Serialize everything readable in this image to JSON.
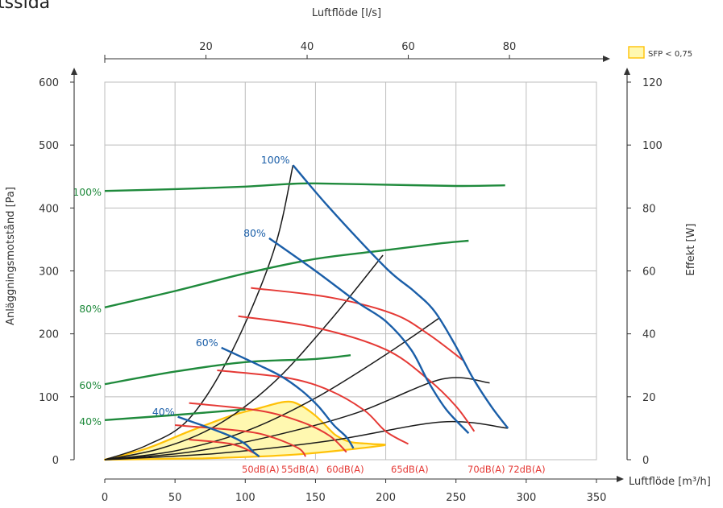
{
  "header": {
    "partial_title": "rtssida"
  },
  "chart_data": {
    "type": "line",
    "xlabel": "Luftflöde [m³/h]",
    "x2label": "Luftflöde [l/s]",
    "ylabel": "Anläggningsmotstånd [Pa]",
    "y2label": "Effekt [W]",
    "xlim": [
      0,
      350
    ],
    "ylim": [
      0,
      600
    ],
    "x2lim": [
      0,
      97.2
    ],
    "y2lim": [
      0,
      120
    ],
    "xticks": [
      0,
      50,
      100,
      150,
      200,
      250,
      300,
      350
    ],
    "yticks": [
      0,
      100,
      200,
      300,
      400,
      500,
      600
    ],
    "x2ticks": [
      20,
      40,
      60,
      80
    ],
    "y2ticks": [
      0,
      20,
      40,
      60,
      80,
      100,
      120
    ],
    "grid": true,
    "legend": {
      "label": "SFP < 0,75",
      "position": "top-right",
      "color": "#ffd54f"
    },
    "colors": {
      "pressure": "#1a5ea8",
      "power": "#1f8a3c",
      "noise": "#e53935",
      "system": "#1a1a1a",
      "sfp_fill": "#fff8b0",
      "sfp_edge": "#ffc107"
    },
    "sfp_region": [
      [
        0,
        0
      ],
      [
        30,
        18
      ],
      [
        60,
        45
      ],
      [
        90,
        70
      ],
      [
        110,
        82
      ],
      [
        128,
        92
      ],
      [
        138,
        88
      ],
      [
        150,
        70
      ],
      [
        160,
        48
      ],
      [
        165,
        38
      ],
      [
        175,
        28
      ],
      [
        190,
        25
      ],
      [
        196,
        22
      ],
      [
        135,
        8
      ],
      [
        70,
        2
      ]
    ],
    "system_curves": [
      [
        [
          0,
          0
        ],
        [
          30,
          23
        ],
        [
          60,
          65
        ],
        [
          90,
          170
        ],
        [
          120,
          330
        ],
        [
          134,
          468
        ]
      ],
      [
        [
          0,
          0
        ],
        [
          40,
          18
        ],
        [
          80,
          55
        ],
        [
          120,
          122
        ],
        [
          160,
          220
        ],
        [
          198,
          325
        ]
      ],
      [
        [
          0,
          0
        ],
        [
          50,
          14
        ],
        [
          100,
          45
        ],
        [
          150,
          98
        ],
        [
          200,
          167
        ],
        [
          238,
          225
        ]
      ],
      [
        [
          0,
          0
        ],
        [
          60,
          12
        ],
        [
          120,
          38
        ],
        [
          180,
          75
        ],
        [
          240,
          128
        ],
        [
          274,
          122
        ]
      ],
      [
        [
          0,
          0
        ],
        [
          80,
          10
        ],
        [
          160,
          30
        ],
        [
          240,
          60
        ],
        [
          287,
          50
        ]
      ]
    ],
    "pressure_series": [
      {
        "name": "100%",
        "points": [
          [
            134,
            468
          ],
          [
            160,
            400
          ],
          [
            200,
            305
          ],
          [
            220,
            268
          ],
          [
            235,
            235
          ],
          [
            250,
            180
          ],
          [
            262,
            130
          ],
          [
            275,
            85
          ],
          [
            287,
            50
          ]
        ]
      },
      {
        "name": "80%",
        "points": [
          [
            117,
            352
          ],
          [
            150,
            300
          ],
          [
            180,
            250
          ],
          [
            200,
            220
          ],
          [
            218,
            175
          ],
          [
            230,
            125
          ],
          [
            243,
            80
          ],
          [
            259,
            42
          ]
        ]
      },
      {
        "name": "60%",
        "points": [
          [
            83,
            178
          ],
          [
            110,
            150
          ],
          [
            126,
            132
          ],
          [
            140,
            110
          ],
          [
            152,
            85
          ],
          [
            163,
            55
          ],
          [
            172,
            36
          ],
          [
            177,
            18
          ]
        ]
      },
      {
        "name": "40%",
        "points": [
          [
            52,
            68
          ],
          [
            75,
            50
          ],
          [
            92,
            35
          ],
          [
            100,
            25
          ],
          [
            106,
            12
          ],
          [
            110,
            5
          ]
        ]
      }
    ],
    "power_series": [
      {
        "name": "100%",
        "points": [
          [
            0,
            85.4
          ],
          [
            50,
            86
          ],
          [
            100,
            86.8
          ],
          [
            130,
            87.6
          ],
          [
            150,
            87.8
          ],
          [
            200,
            87.4
          ],
          [
            250,
            87
          ],
          [
            285,
            87.2
          ]
        ]
      },
      {
        "name": "80%",
        "points": [
          [
            0,
            48.4
          ],
          [
            50,
            53.6
          ],
          [
            100,
            59.2
          ],
          [
            150,
            63.8
          ],
          [
            200,
            66.6
          ],
          [
            240,
            68.8
          ],
          [
            259,
            69.6
          ]
        ]
      },
      {
        "name": "60%",
        "points": [
          [
            0,
            24
          ],
          [
            50,
            28
          ],
          [
            100,
            31
          ],
          [
            150,
            32
          ],
          [
            175,
            33.2
          ]
        ]
      },
      {
        "name": "40%",
        "points": [
          [
            0,
            12.6
          ],
          [
            50,
            14.2
          ],
          [
            100,
            16
          ]
        ]
      }
    ],
    "noise_curves": [
      {
        "label": "50dB(A)",
        "points": [
          [
            0,
            0
          ],
          [
            60,
            32
          ],
          [
            90,
            25
          ],
          [
            105,
            12
          ],
          [
            110,
            5
          ]
        ]
      },
      {
        "label": "55dB(A)",
        "points": [
          [
            0,
            0
          ],
          [
            50,
            55
          ],
          [
            100,
            45
          ],
          [
            120,
            35
          ],
          [
            138,
            18
          ],
          [
            143,
            5
          ]
        ]
      },
      {
        "label": "60dB(A)",
        "points": [
          [
            0,
            0
          ],
          [
            60,
            90
          ],
          [
            110,
            78
          ],
          [
            140,
            60
          ],
          [
            160,
            38
          ],
          [
            172,
            12
          ]
        ]
      },
      {
        "label": "65dB(A)",
        "points": [
          [
            0,
            0
          ],
          [
            80,
            142
          ],
          [
            130,
            130
          ],
          [
            160,
            110
          ],
          [
            185,
            78
          ],
          [
            200,
            45
          ],
          [
            216,
            25
          ]
        ]
      },
      {
        "label": "70dB(A)",
        "points": [
          [
            0,
            0
          ],
          [
            95,
            228
          ],
          [
            150,
            210
          ],
          [
            200,
            175
          ],
          [
            230,
            128
          ],
          [
            250,
            85
          ],
          [
            263,
            45
          ]
        ]
      },
      {
        "label": "72dB(A)",
        "points": [
          [
            0,
            0
          ],
          [
            104,
            273
          ],
          [
            160,
            258
          ],
          [
            205,
            232
          ],
          [
            230,
            200
          ],
          [
            255,
            158
          ]
        ]
      }
    ]
  }
}
